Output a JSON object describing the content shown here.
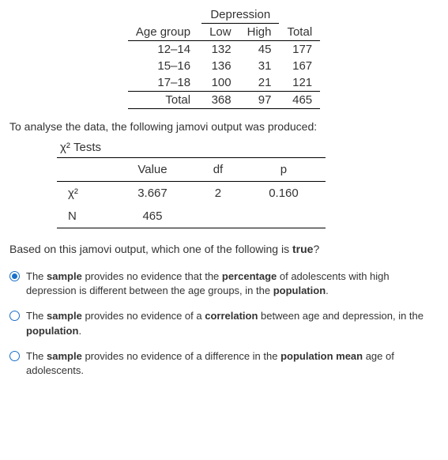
{
  "contingency": {
    "spanner": "Depression",
    "row_header": "Age group",
    "col_labels": [
      "Low",
      "High",
      "Total"
    ],
    "rows": [
      {
        "label": "12–14",
        "cells": [
          "132",
          "45",
          "177"
        ]
      },
      {
        "label": "15–16",
        "cells": [
          "136",
          "31",
          "167"
        ]
      },
      {
        "label": "17–18",
        "cells": [
          "100",
          "21",
          "121"
        ]
      }
    ],
    "total_label": "Total",
    "total_cells": [
      "368",
      "97",
      "465"
    ]
  },
  "narrative1": "To analyse the data, the following jamovi output was produced:",
  "chisq": {
    "title": "χ² Tests",
    "columns": [
      "Value",
      "df",
      "p"
    ],
    "rows": [
      {
        "label": "χ²",
        "cells": [
          "3.667",
          "2",
          "0.160"
        ]
      },
      {
        "label": "N",
        "cells": [
          "465",
          "",
          ""
        ]
      }
    ]
  },
  "question": "Based on this jamovi output, which one of the following is ",
  "question_bold": "true",
  "question_tail": "?",
  "options": [
    {
      "selected": true,
      "segments": [
        {
          "t": "The "
        },
        {
          "b": "sample"
        },
        {
          "t": " provides no evidence that the "
        },
        {
          "b": "percentage"
        },
        {
          "t": " of adolescents with high depression is different between the age groups, in the "
        },
        {
          "b": "population"
        },
        {
          "t": "."
        }
      ]
    },
    {
      "selected": false,
      "segments": [
        {
          "t": "The "
        },
        {
          "b": "sample"
        },
        {
          "t": " provides no evidence of a "
        },
        {
          "b": "correlation"
        },
        {
          "t": " between age and depression, in the "
        },
        {
          "b": "population"
        },
        {
          "t": "."
        }
      ]
    },
    {
      "selected": false,
      "segments": [
        {
          "t": "The "
        },
        {
          "b": "sample"
        },
        {
          "t": " provides no evidence of a difference in the "
        },
        {
          "b": "population mean"
        },
        {
          "t": " age of adolescents."
        }
      ]
    }
  ]
}
